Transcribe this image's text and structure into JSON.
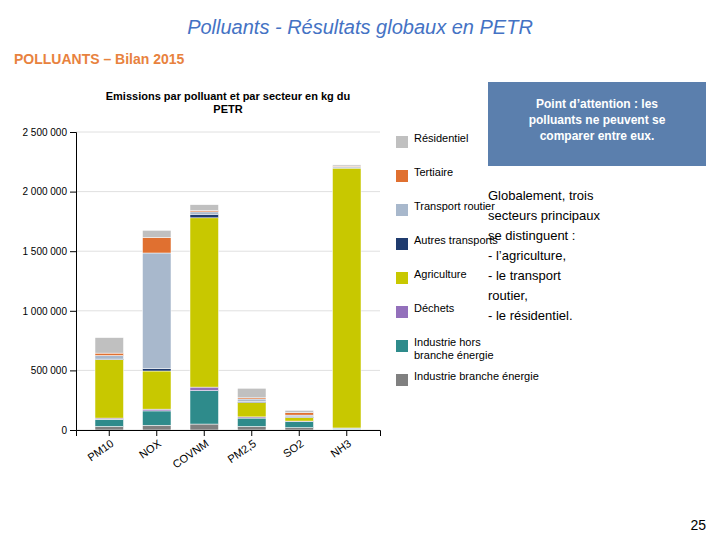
{
  "title": "Polluants - Résultats globaux en PETR",
  "subtitle": "POLLUANTS – Bilan 2015",
  "annotations": [
    "Point d’attention : les\npolluants ne peuvent se\ncomparer entre eux.",
    "Globalement, trois\nsecteurs principaux\nse distinguent :\n- l’agriculture,\n- le transport\nroutier,\n- le résidentiel.",
    "25"
  ],
  "chart_data": {
    "type": "bar",
    "stacked": true,
    "grid": true,
    "legend": "right",
    "title": "Emissions par polluant et par secteur en kg du\nPETR",
    "categories": [
      "PM10",
      "NOX",
      "COVNM",
      "PM2,5",
      "SO2",
      "NH3"
    ],
    "series": [
      {
        "name": "Industrie branche énergie",
        "color": "#808080",
        "values": [
          30000,
          40000,
          50000,
          30000,
          20000,
          5000
        ]
      },
      {
        "name": "Industrie hors\nbranche énergie",
        "color": "#2e8b8b",
        "values": [
          60000,
          120000,
          280000,
          70000,
          50000,
          10000
        ]
      },
      {
        "name": "Déchets",
        "color": "#9370bb",
        "values": [
          10000,
          15000,
          30000,
          10000,
          5000,
          2000
        ]
      },
      {
        "name": "Agriculture",
        "color": "#c8c800",
        "values": [
          490000,
          320000,
          1420000,
          120000,
          30000,
          2180000
        ]
      },
      {
        "name": "Autres transports",
        "color": "#1f3b6e",
        "values": [
          5000,
          20000,
          30000,
          10000,
          5000,
          2000
        ]
      },
      {
        "name": "Transport routier",
        "color": "#a8b8cc",
        "values": [
          30000,
          970000,
          20000,
          20000,
          15000,
          10000
        ]
      },
      {
        "name": "Tertiaire",
        "color": "#e07030",
        "values": [
          20000,
          130000,
          10000,
          10000,
          20000,
          5000
        ]
      },
      {
        "name": "Résidentiel",
        "color": "#c0c0c0",
        "values": [
          130000,
          60000,
          50000,
          80000,
          20000,
          10000
        ]
      }
    ],
    "ylim": [
      0,
      2500000
    ],
    "yticks": [
      0,
      {
        "value": 500000,
        "label": "500 000"
      },
      {
        "value": 1000000,
        "label": "1 000 000"
      },
      {
        "value": 1500000,
        "label": "1 500 000"
      },
      {
        "value": 2000000,
        "label": "2 000 000"
      },
      {
        "value": 2500000,
        "label": "2 500 000"
      }
    ]
  }
}
